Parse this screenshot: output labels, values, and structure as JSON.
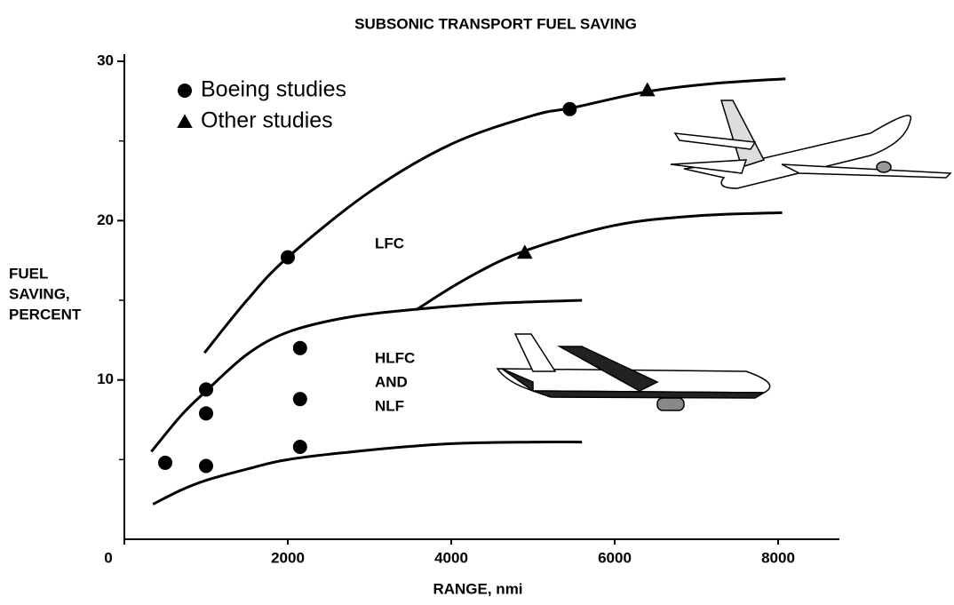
{
  "chart_data": {
    "type": "line",
    "title": "SUBSONIC TRANSPORT FUEL SAVING",
    "x_label": "RANGE, nmi",
    "y_label": [
      "FUEL",
      "SAVING,",
      "PERCENT"
    ],
    "xlim": [
      0,
      8750
    ],
    "ylim": [
      0,
      30
    ],
    "xticks": [
      0,
      2000,
      4000,
      6000,
      8000
    ],
    "yticks": [
      10,
      20,
      30
    ],
    "yminorticks": [
      5,
      15,
      25
    ],
    "annotations": [
      "LFC",
      [
        "HLFC",
        "AND",
        "NLF"
      ]
    ],
    "curves": [
      {
        "color": "#000000",
        "x": [
          980,
          1500,
          2000,
          3000,
          4000,
          5000,
          5500,
          6400,
          7200,
          8090
        ],
        "y": [
          11.7,
          15.0,
          17.7,
          21.8,
          24.8,
          26.6,
          27.1,
          28.1,
          28.6,
          28.9
        ]
      },
      {
        "color": "#000000",
        "x": [
          3570,
          4200,
          4900,
          6000,
          7000,
          8050
        ],
        "y": [
          14.4,
          16.4,
          18.1,
          19.7,
          20.3,
          20.5
        ]
      },
      {
        "color": "#000000",
        "x": [
          330,
          700,
          1000,
          1500,
          2000,
          2700,
          3500,
          4500,
          5600
        ],
        "y": [
          5.5,
          7.8,
          9.3,
          11.6,
          13.0,
          13.9,
          14.4,
          14.8,
          15.0
        ]
      },
      {
        "color": "#000000",
        "x": [
          350,
          700,
          1000,
          1500,
          2000,
          3000,
          4000,
          5000,
          5600
        ],
        "y": [
          2.2,
          3.1,
          3.7,
          4.4,
          5.0,
          5.6,
          6.0,
          6.1,
          6.1
        ]
      }
    ],
    "series": [
      {
        "name": "Boeing studies",
        "marker": "circle",
        "color": "#000000",
        "x": [
          500,
          1000,
          1000,
          1000,
          2000,
          2150,
          2150,
          2150,
          5450
        ],
        "y": [
          4.8,
          4.6,
          7.9,
          9.4,
          17.7,
          12.0,
          8.8,
          5.8,
          27.0
        ]
      },
      {
        "name": "Other studies",
        "marker": "triangle",
        "color": "#000000",
        "x": [
          4900,
          6400
        ],
        "y": [
          18.0,
          28.2
        ]
      }
    ]
  }
}
